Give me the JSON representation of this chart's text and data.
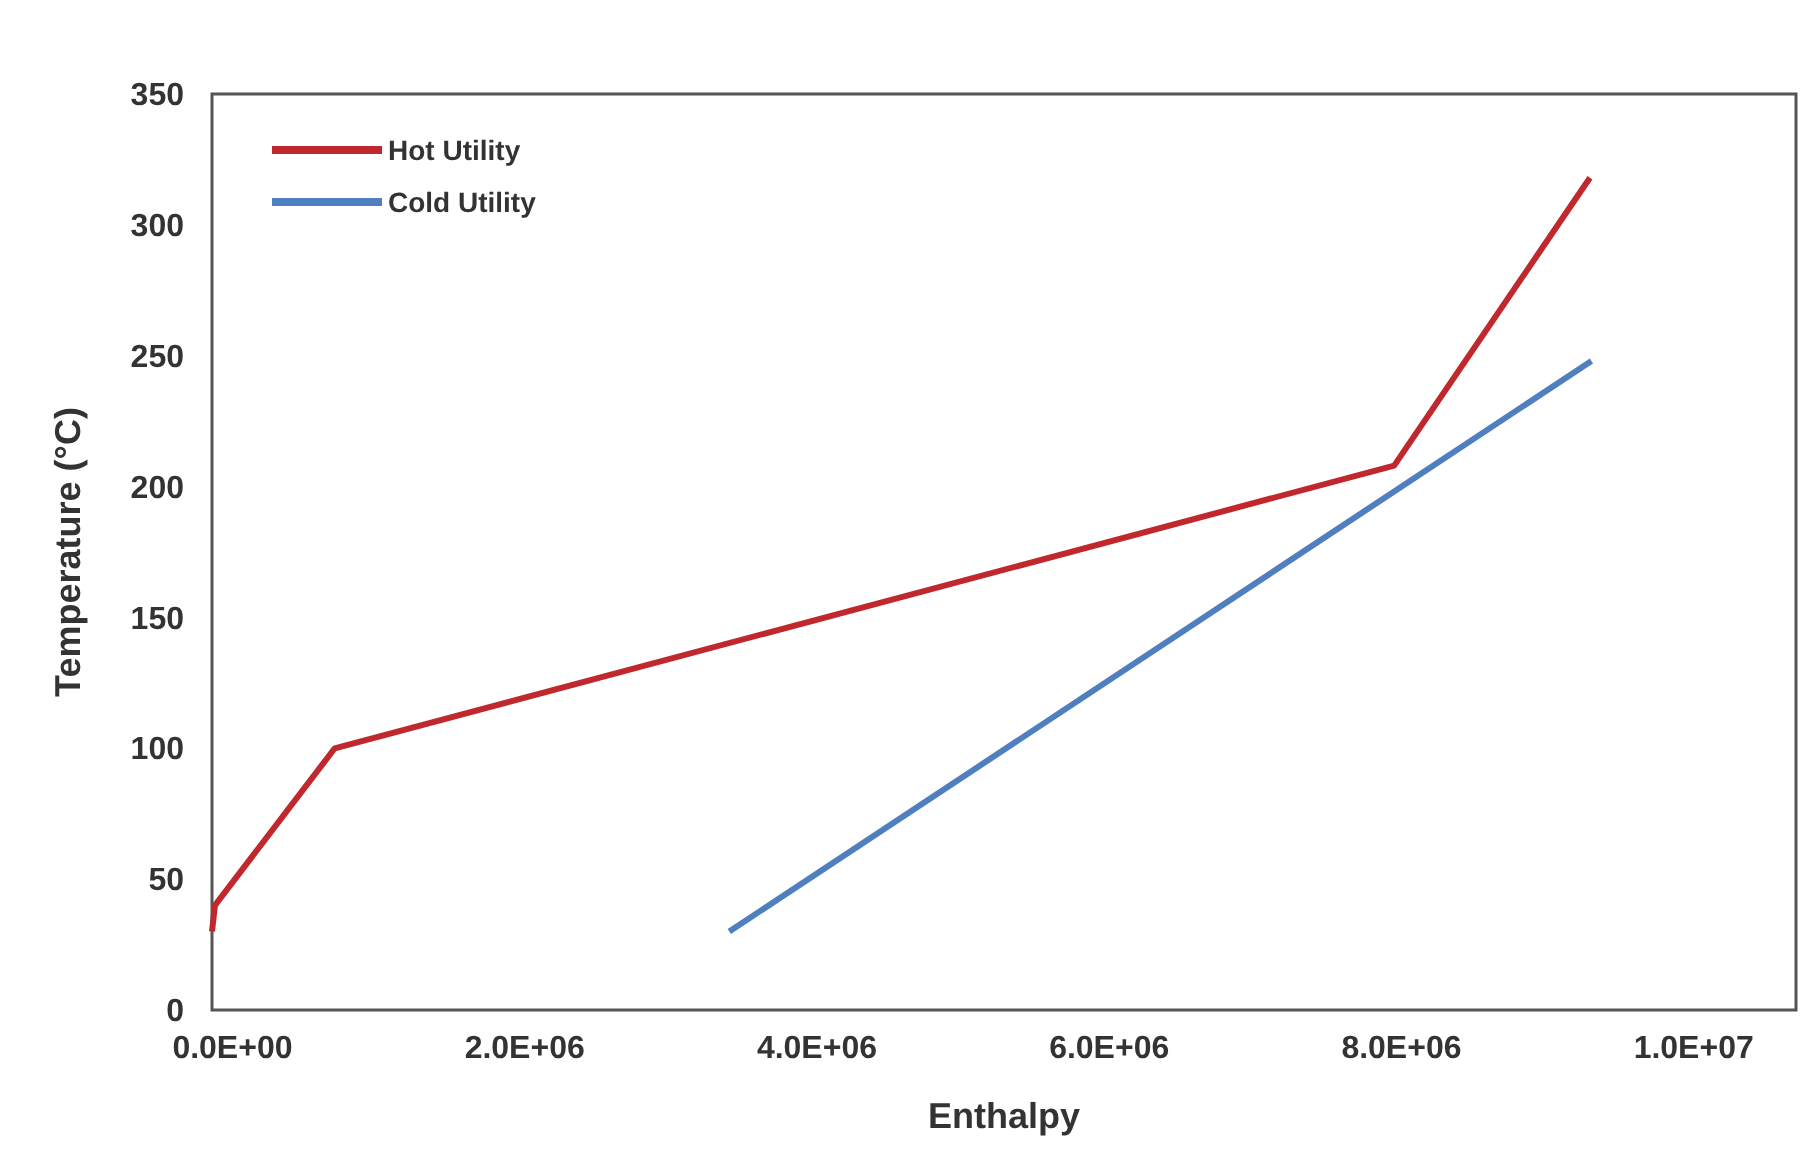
{
  "chart_data": {
    "type": "line",
    "xlabel": "Enthalpy",
    "ylabel": "Temperature (°C)",
    "xlim": [
      -140000,
      10700000
    ],
    "xticks": [
      {
        "value": 0,
        "label": "0.0E+00"
      },
      {
        "value": 2000000,
        "label": "2.0E+06"
      },
      {
        "value": 4000000,
        "label": "4.0E+06"
      },
      {
        "value": 6000000,
        "label": "6.0E+06"
      },
      {
        "value": 8000000,
        "label": "8.0E+06"
      },
      {
        "value": 10000000,
        "label": "1.0E+07"
      }
    ],
    "ylim": [
      0,
      350
    ],
    "yticks": [
      0,
      50,
      100,
      150,
      200,
      250,
      300,
      350
    ],
    "grid": false,
    "legend": "top left",
    "marker": "none",
    "line_style": "solid",
    "series": [
      {
        "name": "Hot Utility",
        "color": "#c0282d",
        "x": [
          -140000,
          -120000,
          700000,
          7950000,
          9290000
        ],
        "values": [
          30,
          40,
          100,
          208,
          318
        ]
      },
      {
        "name": "Cold Utility",
        "color": "#4f7fbf",
        "x": [
          3400000,
          9300000
        ],
        "values": [
          30,
          248
        ]
      }
    ]
  }
}
